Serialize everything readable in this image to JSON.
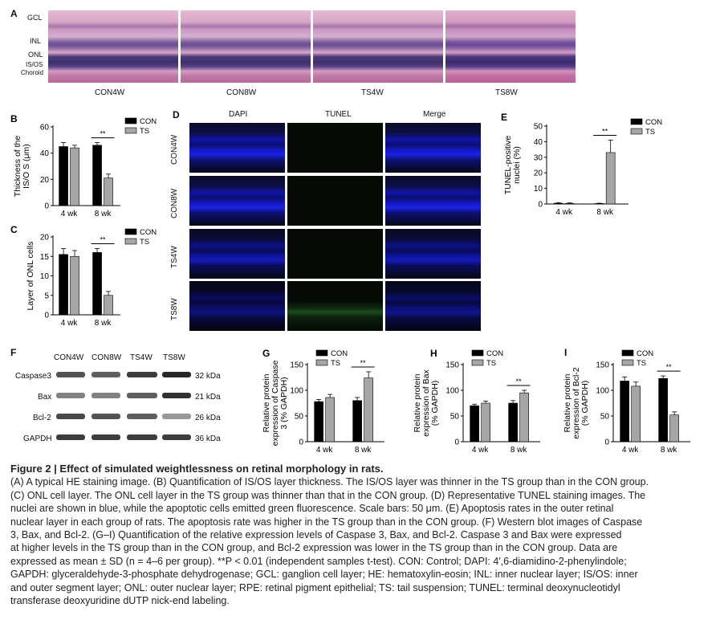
{
  "panel_A": {
    "letter": "A",
    "layers": [
      "GCL",
      "INL",
      "ONL",
      "IS/OS",
      "Choroid"
    ],
    "image_labels": [
      "CON4W",
      "CON8W",
      "TS4W",
      "TS8W"
    ]
  },
  "panel_D": {
    "letter": "D",
    "columns": [
      "DAPI",
      "TUNEL",
      "Merge"
    ],
    "rows": [
      "CON4W",
      "CON8W",
      "TS4W",
      "TS8W"
    ]
  },
  "panel_F": {
    "letter": "F",
    "lanes": [
      "CON4W",
      "CON8W",
      "TS4W",
      "TS8W"
    ],
    "proteins": [
      "Caspase3",
      "Bax",
      "Bcl-2",
      "GAPDH"
    ],
    "sizes": [
      "32 kDa",
      "21 kDa",
      "26 kDa",
      "36 kDa"
    ]
  },
  "chart_data": [
    {
      "panel": "B",
      "type": "bar",
      "categories": [
        "4 wk",
        "8 wk"
      ],
      "series": [
        {
          "name": "CON",
          "values": [
            45,
            46
          ]
        },
        {
          "name": "TS",
          "values": [
            44,
            21
          ]
        }
      ],
      "errors": [
        [
          3,
          2
        ],
        [
          2,
          3
        ]
      ],
      "ylabel": "Thickness of the IS/O S (μm)",
      "ylim": [
        0,
        60
      ],
      "yticks": [
        0,
        20,
        40,
        60
      ],
      "sig": "**",
      "legend": "top-right"
    },
    {
      "panel": "C",
      "type": "bar",
      "categories": [
        "4 wk",
        "8 wk"
      ],
      "series": [
        {
          "name": "CON",
          "values": [
            15.5,
            16
          ]
        },
        {
          "name": "TS",
          "values": [
            15,
            5
          ]
        }
      ],
      "errors": [
        [
          1.5,
          1
        ],
        [
          1.5,
          1
        ]
      ],
      "ylabel": "Layer of ONL cells",
      "ylim": [
        0,
        20
      ],
      "yticks": [
        0,
        5,
        10,
        15,
        20
      ],
      "sig": "**",
      "legend": "top-right"
    },
    {
      "panel": "E",
      "type": "bar",
      "categories": [
        "4 wk",
        "8 wk"
      ],
      "series": [
        {
          "name": "CON",
          "values": [
            0.5,
            0.3
          ]
        },
        {
          "name": "TS",
          "values": [
            0.4,
            33
          ]
        }
      ],
      "errors": [
        [
          0.3,
          0.2
        ],
        [
          0.3,
          8
        ]
      ],
      "ylabel": "TUNEL-positive nuclei (%)",
      "ylim": [
        0,
        50
      ],
      "yticks": [
        0,
        10,
        20,
        30,
        40,
        50
      ],
      "sig": "**",
      "legend": "top-right"
    },
    {
      "panel": "G",
      "type": "bar",
      "categories": [
        "4 wk",
        "8 wk"
      ],
      "series": [
        {
          "name": "CON",
          "values": [
            78,
            80
          ]
        },
        {
          "name": "TS",
          "values": [
            86,
            124
          ]
        }
      ],
      "errors": [
        [
          4,
          6
        ],
        [
          6,
          12
        ]
      ],
      "ylabel": "Relative protein expression of Caspase 3 (% GAPDH)",
      "ylim": [
        0,
        150
      ],
      "yticks": [
        0,
        50,
        100,
        150
      ],
      "sig": "**",
      "legend": "top-left"
    },
    {
      "panel": "H",
      "type": "bar",
      "categories": [
        "4 wk",
        "8 wk"
      ],
      "series": [
        {
          "name": "CON",
          "values": [
            70,
            75
          ]
        },
        {
          "name": "TS",
          "values": [
            75,
            95
          ]
        }
      ],
      "errors": [
        [
          3,
          5
        ],
        [
          4,
          5
        ]
      ],
      "ylabel": "Relative protein expression of Bax (% GAPDH)",
      "ylim": [
        0,
        150
      ],
      "yticks": [
        0,
        50,
        100,
        150
      ],
      "sig": "**",
      "legend": "top-left"
    },
    {
      "panel": "I",
      "type": "bar",
      "categories": [
        "4 wk",
        "8 wk"
      ],
      "series": [
        {
          "name": "CON",
          "values": [
            118,
            123
          ]
        },
        {
          "name": "TS",
          "values": [
            108,
            52
          ]
        }
      ],
      "errors": [
        [
          8,
          5
        ],
        [
          8,
          6
        ]
      ],
      "ylabel": "Relative protein expression of Bcl-2 (% GAPDH)",
      "ylim": [
        0,
        150
      ],
      "yticks": [
        0,
        50,
        100,
        150
      ],
      "sig": "**",
      "legend": "top-left"
    }
  ],
  "caption": {
    "title": "Figure 2 | Effect of simulated weightlessness on retinal morphology in rats.",
    "lines": [
      "(A) A typical HE staining image. (B) Quantification of IS/OS layer thickness. The IS/OS layer was thinner in the TS group than in the CON group.",
      "(C) ONL cell layer. The ONL cell layer in the TS group was thinner than that in the CON group. (D) Representative TUNEL staining images. The",
      "nuclei are shown in blue, while the apoptotic cells emitted green fluorescence. Scale bars: 50 μm. (E) Apoptosis rates in the outer retinal",
      "nuclear layer in each group of rats. The apoptosis rate was higher in the TS group than in the CON group. (F) Western blot images of Caspase",
      "3, Bax, and Bcl-2. (G–I) Quantification of the relative expression levels of Caspase 3, Bax, and Bcl-2. Caspase 3 and Bax were expressed",
      "at higher levels in the TS group than in the CON group, and Bcl-2 expression was lower in the TS group than in the CON group. Data are",
      "expressed as mean ± SD (n = 4–6 per group). **P < 0.01 (independent samples t-test). CON: Control; DAPI: 4′,6-diamidino-2-phenylindole;",
      "GAPDH: glyceraldehyde-3-phosphate dehydrogenase; GCL: ganglion cell layer; HE: hematoxylin-eosin; INL: inner nuclear layer; IS/OS: inner",
      "and outer segment layer; ONL: outer nuclear layer; RPE: retinal pigment epithelial; TS: tail suspension; TUNEL: terminal deoxynucleotidyl",
      "transferase deoxyuridine dUTP nick-end labeling."
    ]
  },
  "colors": {
    "con": "#000000",
    "ts": "#a6a6a6",
    "dapi": "#1a22e0",
    "tunel": "#2aa02a"
  }
}
